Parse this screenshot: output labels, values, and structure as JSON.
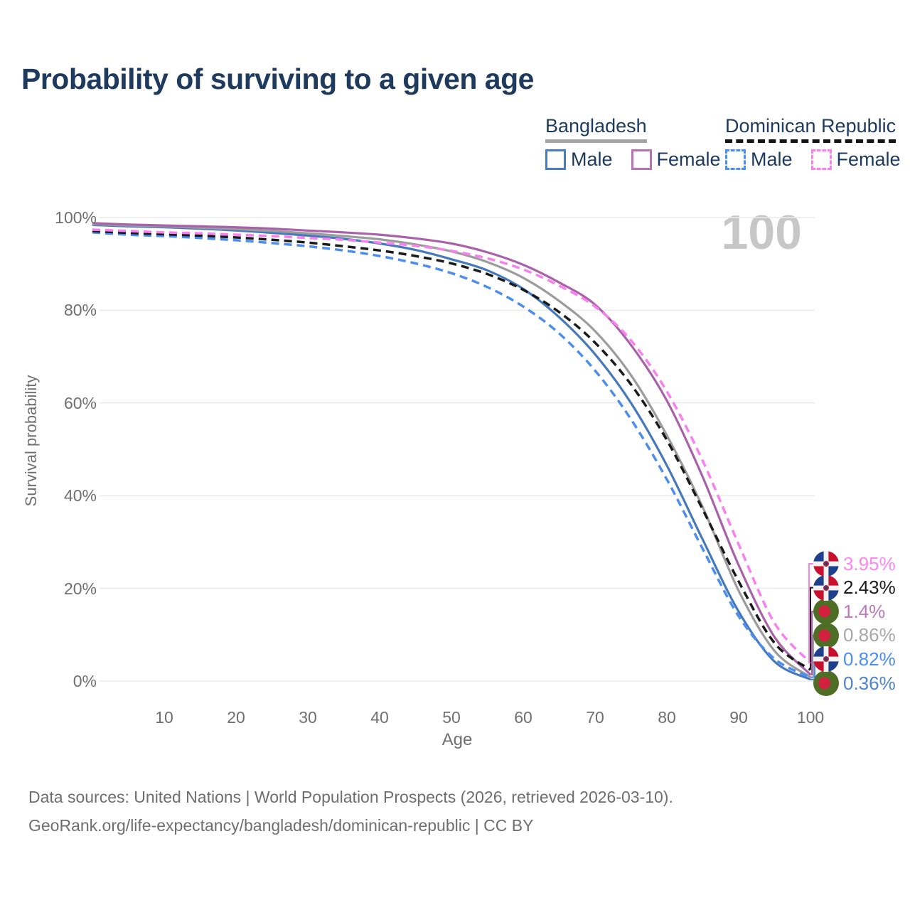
{
  "title": "Probability of surviving to a given age",
  "legend": {
    "groups": [
      {
        "label": "Bangladesh",
        "line_style": "solid",
        "underline_color": "#a3a3a3",
        "items": [
          {
            "label": "Male",
            "color": "#4b7bbf",
            "dashed": false
          },
          {
            "label": "Female",
            "color": "#b474af",
            "dashed": false
          }
        ]
      },
      {
        "label": "Dominican Republic",
        "line_style": "dashed",
        "underline_color": "#141414",
        "items": [
          {
            "label": "Male",
            "color": "#4b8ef2",
            "dashed": true
          },
          {
            "label": "Female",
            "color": "#fb80ef",
            "dashed": true
          }
        ]
      }
    ]
  },
  "chart_data": {
    "type": "line",
    "title": "Probability of surviving to a given age",
    "xlabel": "Age",
    "ylabel": "Survival probability",
    "xlim": [
      0,
      100
    ],
    "ylim": [
      0,
      100
    ],
    "x_ticks": [
      10,
      20,
      30,
      40,
      50,
      60,
      70,
      80,
      90,
      100
    ],
    "y_ticks": [
      0,
      20,
      40,
      60,
      80,
      100
    ],
    "y_tick_suffix": "%",
    "grid": "horizontal",
    "legend_position": "top-right",
    "watermark": "100",
    "ages": [
      0,
      5,
      10,
      15,
      20,
      25,
      30,
      35,
      40,
      45,
      50,
      55,
      60,
      65,
      70,
      75,
      80,
      85,
      90,
      95,
      100
    ],
    "series": [
      {
        "id": "bd-male",
        "name": "Bangladesh Male",
        "country": "Bangladesh",
        "sex": "Male",
        "color": "#4579be",
        "dashed": false,
        "flag": "bd",
        "end_label": "0.36%",
        "end_value_pct": 0.36,
        "label_color": "#5083cd",
        "label_row": 5,
        "values": [
          98.4,
          98.1,
          97.9,
          97.6,
          97.2,
          96.7,
          96.1,
          95.4,
          94.4,
          93.0,
          91.0,
          88.6,
          84.6,
          78.5,
          70.5,
          60.0,
          46.5,
          30.5,
          15.0,
          4.2,
          0.36
        ]
      },
      {
        "id": "bd-both",
        "name": "Bangladesh (both sexes)",
        "country": "Bangladesh",
        "sex": "Both",
        "color": "#9c9c9c",
        "dashed": false,
        "flag": "bd",
        "end_label": "0.86%",
        "end_value_pct": 0.86,
        "label_color": "#a8a8a8",
        "label_row": 3,
        "values": [
          98.6,
          98.3,
          98.1,
          97.8,
          97.5,
          97.1,
          96.6,
          96.0,
          95.3,
          94.2,
          92.7,
          90.4,
          87.0,
          82.0,
          75.5,
          66.0,
          53.0,
          37.5,
          19.5,
          6.5,
          0.86
        ]
      },
      {
        "id": "bd-female",
        "name": "Bangladesh Female",
        "country": "Bangladesh",
        "sex": "Female",
        "color": "#a962a9",
        "dashed": false,
        "flag": "bd",
        "end_label": "1.4%",
        "end_value_pct": 1.4,
        "label_color": "#bd7abd",
        "label_row": 2,
        "values": [
          98.8,
          98.5,
          98.3,
          98.1,
          97.9,
          97.6,
          97.2,
          96.8,
          96.3,
          95.5,
          94.4,
          92.5,
          89.8,
          86.0,
          81.2,
          72.5,
          60.5,
          44.0,
          25.0,
          9.5,
          1.4
        ]
      },
      {
        "id": "dr-male",
        "name": "Dominican Republic Male",
        "country": "Dominican Republic",
        "sex": "Male",
        "color": "#4e8df0",
        "dashed": true,
        "flag": "do",
        "end_label": "0.82%",
        "end_value_pct": 0.82,
        "label_color": "#4b8ef2",
        "label_row": 4,
        "values": [
          96.8,
          96.3,
          96.0,
          95.6,
          95.1,
          94.5,
          93.8,
          92.9,
          91.7,
          90.1,
          88.0,
          85.0,
          80.8,
          75.0,
          67.0,
          56.5,
          43.5,
          28.5,
          14.0,
          4.8,
          0.82
        ]
      },
      {
        "id": "dr-both",
        "name": "Dominican Republic (both sexes)",
        "country": "Dominican Republic",
        "sex": "Both",
        "color": "#1a1a1a",
        "dashed": true,
        "flag": "do",
        "end_label": "2.43%",
        "end_value_pct": 2.43,
        "label_color": "#1c1c1c",
        "label_row": 1,
        "values": [
          97.1,
          96.7,
          96.4,
          96.1,
          95.7,
          95.2,
          94.6,
          93.8,
          92.9,
          91.7,
          90.1,
          87.8,
          84.4,
          79.6,
          73.0,
          64.0,
          52.0,
          37.0,
          21.5,
          8.2,
          2.43
        ]
      },
      {
        "id": "dr-female",
        "name": "Dominican Republic Female",
        "country": "Dominican Republic",
        "sex": "Female",
        "color": "#f980ef",
        "dashed": true,
        "flag": "do",
        "end_label": "3.95%",
        "end_value_pct": 3.95,
        "label_color": "#ff85ee",
        "label_row": 0,
        "values": [
          97.4,
          97.1,
          96.8,
          96.6,
          96.3,
          96.0,
          95.6,
          95.2,
          94.6,
          93.9,
          92.8,
          91.2,
          88.8,
          85.3,
          80.8,
          73.5,
          62.5,
          47.5,
          29.5,
          12.5,
          3.95
        ]
      }
    ]
  },
  "footer": {
    "line1": "Data sources: United Nations | World Population Prospects (2026, retrieved 2026-03-10).",
    "line2": "GeoRank.org/life-expectancy/bangladesh/dominican-republic | CC BY"
  }
}
